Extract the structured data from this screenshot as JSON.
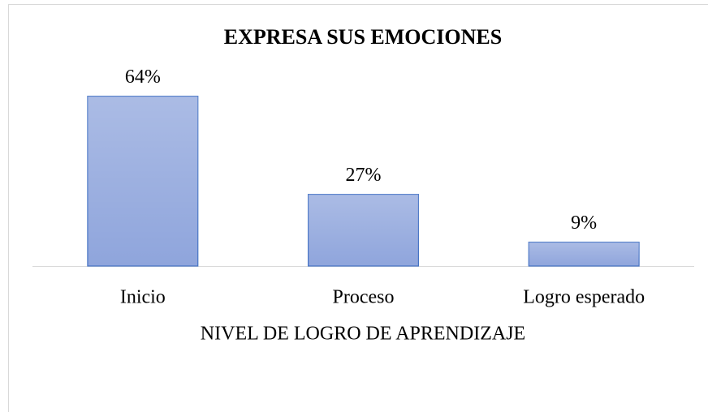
{
  "chart_data": {
    "type": "bar",
    "title": "EXPRESA SUS EMOCIONES",
    "x_label": "NIVEL DE LOGRO DE APRENDIZAJE",
    "categories": [
      "Inicio",
      "Proceso",
      "Logro esperado"
    ],
    "values": [
      64,
      27,
      9
    ],
    "value_labels": [
      "64%",
      "27%",
      "9%"
    ],
    "color": "#8fa5dc",
    "ylim": [
      0,
      70
    ]
  }
}
